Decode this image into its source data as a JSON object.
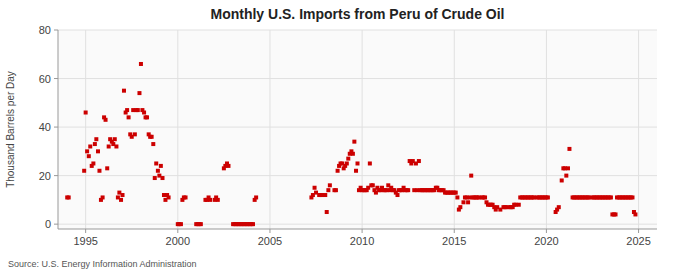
{
  "chart_data": {
    "type": "scatter",
    "title": "Monthly U.S. Imports from Peru of Crude Oil",
    "ylabel": "Thousand Barrels per Day",
    "annotations": [
      "Source: U.S. Energy Information Administration"
    ],
    "color": "#cc0000",
    "marker": "square",
    "grid": true,
    "xlim": [
      1993.5,
      2026
    ],
    "ylim": [
      -2,
      80
    ],
    "xticks": [
      1995,
      2000,
      2005,
      2010,
      2015,
      2020,
      2025
    ],
    "yticks": [
      0,
      20,
      40,
      60,
      80
    ],
    "x": [
      1994.0,
      1994.08,
      1994.92,
      1995.0,
      1995.08,
      1995.17,
      1995.25,
      1995.33,
      1995.42,
      1995.5,
      1995.58,
      1995.67,
      1995.75,
      1995.83,
      1995.92,
      1996.0,
      1996.08,
      1996.17,
      1996.25,
      1996.33,
      1996.42,
      1996.5,
      1996.58,
      1996.67,
      1996.75,
      1996.83,
      1996.92,
      1997.0,
      1997.08,
      1997.17,
      1997.25,
      1997.33,
      1997.42,
      1997.5,
      1997.58,
      1997.67,
      1997.75,
      1997.83,
      1997.92,
      1998.0,
      1998.08,
      1998.17,
      1998.25,
      1998.33,
      1998.42,
      1998.5,
      1998.58,
      1998.67,
      1998.75,
      1998.83,
      1998.92,
      1999.0,
      1999.08,
      1999.17,
      1999.25,
      1999.33,
      1999.42,
      1999.5,
      2000.0,
      2000.08,
      2000.17,
      2000.25,
      2000.33,
      2000.42,
      2001.0,
      2001.08,
      2001.17,
      2001.25,
      2001.5,
      2001.58,
      2001.67,
      2001.75,
      2002.0,
      2002.08,
      2002.17,
      2002.5,
      2002.58,
      2002.67,
      2002.75,
      2003.0,
      2003.08,
      2003.17,
      2003.25,
      2003.33,
      2003.42,
      2003.5,
      2003.58,
      2003.67,
      2003.75,
      2003.83,
      2003.92,
      2004.0,
      2004.08,
      2004.17,
      2004.25,
      2007.25,
      2007.33,
      2007.42,
      2007.5,
      2007.67,
      2007.75,
      2007.83,
      2008.0,
      2008.08,
      2008.17,
      2008.25,
      2008.5,
      2008.58,
      2008.67,
      2008.75,
      2008.83,
      2008.92,
      2009.0,
      2009.08,
      2009.17,
      2009.25,
      2009.33,
      2009.42,
      2009.5,
      2009.58,
      2009.67,
      2009.75,
      2009.83,
      2009.92,
      2010.0,
      2010.08,
      2010.17,
      2010.25,
      2010.33,
      2010.42,
      2010.5,
      2010.58,
      2010.67,
      2010.75,
      2010.83,
      2010.92,
      2011.0,
      2011.08,
      2011.17,
      2011.25,
      2011.33,
      2011.42,
      2011.5,
      2011.58,
      2011.67,
      2011.75,
      2011.83,
      2011.92,
      2012.0,
      2012.08,
      2012.17,
      2012.25,
      2012.33,
      2012.42,
      2012.5,
      2012.58,
      2012.67,
      2012.75,
      2012.83,
      2012.92,
      2013.0,
      2013.08,
      2013.17,
      2013.25,
      2013.33,
      2013.42,
      2013.5,
      2013.58,
      2013.67,
      2013.75,
      2013.83,
      2013.92,
      2014.0,
      2014.08,
      2014.17,
      2014.25,
      2014.33,
      2014.42,
      2014.5,
      2014.58,
      2014.67,
      2014.75,
      2014.83,
      2014.92,
      2015.0,
      2015.08,
      2015.17,
      2015.25,
      2015.33,
      2015.5,
      2015.58,
      2015.67,
      2015.75,
      2015.83,
      2015.92,
      2016.0,
      2016.08,
      2016.17,
      2016.25,
      2016.33,
      2016.5,
      2016.58,
      2016.67,
      2016.75,
      2016.83,
      2016.92,
      2017.0,
      2017.08,
      2017.17,
      2017.25,
      2017.33,
      2017.5,
      2017.67,
      2017.75,
      2017.83,
      2018.0,
      2018.08,
      2018.17,
      2018.25,
      2018.33,
      2018.5,
      2018.58,
      2018.67,
      2018.75,
      2018.83,
      2018.92,
      2019.0,
      2019.08,
      2019.17,
      2019.25,
      2019.33,
      2019.5,
      2019.58,
      2019.67,
      2019.75,
      2019.83,
      2019.92,
      2020.0,
      2020.08,
      2020.5,
      2020.58,
      2020.67,
      2020.83,
      2020.92,
      2021.0,
      2021.08,
      2021.17,
      2021.25,
      2021.42,
      2021.5,
      2021.58,
      2021.67,
      2021.75,
      2021.83,
      2021.92,
      2022.0,
      2022.08,
      2022.17,
      2022.25,
      2022.33,
      2022.5,
      2022.58,
      2022.67,
      2022.75,
      2022.83,
      2022.92,
      2023.0,
      2023.08,
      2023.17,
      2023.25,
      2023.33,
      2023.42,
      2023.5,
      2023.58,
      2023.67,
      2023.75,
      2023.83,
      2023.92,
      2024.0,
      2024.08,
      2024.17,
      2024.25,
      2024.33,
      2024.42,
      2024.5,
      2024.58,
      2024.67,
      2024.75,
      2024.83
    ],
    "values": [
      11,
      11,
      22,
      46,
      30,
      28,
      32,
      24,
      25,
      33,
      35,
      30,
      22,
      10,
      11,
      44,
      43,
      23,
      32,
      35,
      34,
      33,
      35,
      32,
      11,
      13,
      10,
      12,
      55,
      46,
      47,
      44,
      37,
      36,
      47,
      37,
      47,
      47,
      54,
      66,
      47,
      46,
      44,
      44,
      37,
      36,
      36,
      33,
      19,
      25,
      22,
      20,
      24,
      19,
      12,
      10,
      12,
      11,
      0,
      0,
      0,
      10,
      11,
      11,
      0,
      0,
      0,
      0,
      10,
      10,
      11,
      10,
      10,
      11,
      10,
      23,
      24,
      25,
      24,
      0,
      0,
      0,
      0,
      0,
      0,
      0,
      0,
      0,
      0,
      0,
      0,
      0,
      0,
      10,
      11,
      11,
      12,
      15,
      13,
      12,
      12,
      12,
      12,
      5,
      14,
      16,
      14,
      14,
      22,
      24,
      25,
      25,
      23,
      24,
      25,
      27,
      29,
      30,
      29,
      34,
      22,
      25,
      14,
      15,
      14,
      14,
      14,
      14,
      15,
      25,
      16,
      16,
      14,
      13,
      15,
      14,
      14,
      15,
      14,
      14,
      14,
      16,
      14,
      15,
      14,
      14,
      13,
      12,
      14,
      14,
      14,
      15,
      14,
      14,
      14,
      26,
      25,
      26,
      14,
      25,
      14,
      26,
      14,
      14,
      14,
      14,
      14,
      14,
      14,
      14,
      14,
      14,
      15,
      15,
      14,
      14,
      14,
      14,
      13,
      13,
      13,
      13,
      13,
      13,
      13,
      13,
      11,
      6,
      7,
      9,
      11,
      11,
      9,
      11,
      20,
      11,
      11,
      11,
      11,
      11,
      11,
      11,
      11,
      9,
      8,
      8,
      8,
      8,
      7,
      6,
      7,
      6,
      7,
      7,
      7,
      7,
      7,
      7,
      8,
      8,
      8,
      11,
      11,
      11,
      11,
      11,
      11,
      11,
      11,
      11,
      11,
      11,
      11,
      11,
      11,
      11,
      11,
      11,
      11,
      5,
      6,
      7,
      18,
      23,
      23,
      20,
      23,
      31,
      11,
      11,
      11,
      11,
      11,
      11,
      11,
      11,
      11,
      11,
      11,
      11,
      11,
      11,
      11,
      11,
      11,
      11,
      11,
      11,
      11,
      11,
      11,
      11,
      11,
      4,
      4,
      4,
      11,
      11,
      11,
      11,
      11,
      11,
      11,
      11,
      11,
      11,
      11,
      5,
      4
    ]
  }
}
